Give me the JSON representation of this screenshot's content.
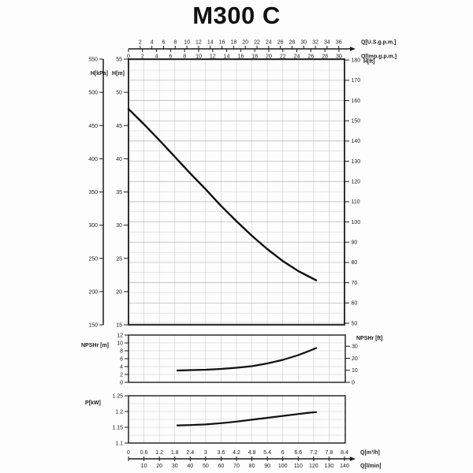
{
  "page": {
    "title": "M300 C"
  },
  "colors": {
    "bg": "#fdfdfd",
    "ink": "#1a1a1a",
    "grid_minor": "#cccccc",
    "grid_major": "#b2b2b2",
    "curve": "#0f0f0f"
  },
  "chart_data": [
    {
      "id": "main",
      "type": "line",
      "x_range_m3h": [
        0,
        8.4
      ],
      "y_range_m": [
        15,
        55
      ],
      "grid": {
        "vertical_step_m3h": 0.6,
        "horizontal_step_ft": 5
      },
      "axes": {
        "top_us": {
          "label": "Q[U.S.g.p.m.]",
          "m3h_per_unit": 0.22712,
          "ticks": [
            2,
            4,
            6,
            8,
            10,
            12,
            14,
            16,
            18,
            20,
            22,
            24,
            26,
            28,
            30,
            32,
            34,
            36
          ]
        },
        "top_imp": {
          "label": "Q[Imp.g.p.m.]",
          "m3h_per_unit": 0.27277,
          "ticks": [
            0,
            2,
            4,
            6,
            8,
            10,
            12,
            14,
            16,
            18,
            20,
            22,
            24,
            26,
            28,
            30
          ]
        },
        "left_kpa": {
          "label": "H[kPa]",
          "range": [
            150,
            550
          ],
          "ticks": [
            550,
            500,
            450,
            400,
            350,
            300,
            250,
            200,
            150
          ]
        },
        "left_m": {
          "label": "H[m]",
          "ticks": [
            55,
            50,
            45,
            40,
            35,
            30,
            25,
            20,
            15
          ]
        },
        "right_ft": {
          "label": "H[ft]",
          "m_per_unit": 0.3048,
          "ticks": [
            180,
            170,
            160,
            150,
            140,
            130,
            120,
            110,
            100,
            90,
            80,
            70,
            60,
            50
          ]
        },
        "bottom_m3h": {
          "label": "Q[m³/h]",
          "tick_labels": [
            "0",
            "0.6",
            "1.2",
            "1.8",
            "2.4",
            "3",
            "3.6",
            "4.2",
            "4.8",
            "5.4",
            "6",
            "6.6",
            "7.2",
            "7.8",
            "8.4"
          ]
        },
        "bottom_lmin": {
          "label": "Q[l/min]",
          "m3h_per_unit": 0.06,
          "ticks": [
            10,
            20,
            30,
            40,
            50,
            60,
            70,
            80,
            90,
            100,
            110,
            120,
            130,
            140
          ]
        }
      },
      "series": [
        {
          "name": "head-capacity-curve",
          "points": [
            [
              0,
              47.5
            ],
            [
              0.6,
              45.2
            ],
            [
              1.2,
              42.8
            ],
            [
              1.8,
              40.3
            ],
            [
              2.4,
              37.8
            ],
            [
              3,
              35.4
            ],
            [
              3.6,
              32.9
            ],
            [
              4.2,
              30.6
            ],
            [
              4.8,
              28.4
            ],
            [
              5.4,
              26.4
            ],
            [
              6,
              24.6
            ],
            [
              6.6,
              23.1
            ],
            [
              7,
              22.3
            ],
            [
              7.3,
              21.7
            ]
          ]
        }
      ]
    },
    {
      "id": "npsh",
      "type": "line",
      "x_range_m3h": [
        0,
        8.4
      ],
      "y_range_m": [
        0,
        12
      ],
      "grid": {
        "vertical_step_m3h": 0.6,
        "horizontal_step_m": 2
      },
      "axes": {
        "left_m": {
          "label": "NPSHr [m]",
          "ticks": [
            12,
            10,
            8,
            6,
            4,
            2,
            0
          ]
        },
        "right_ft": {
          "label": "NPSHr [ft]",
          "m_per_unit": 0.3048,
          "ticks": [
            30,
            20,
            10,
            0
          ]
        }
      },
      "series": [
        {
          "name": "npsh-curve",
          "points": [
            [
              1.9,
              3
            ],
            [
              2.4,
              3.1
            ],
            [
              3,
              3.2
            ],
            [
              3.6,
              3.4
            ],
            [
              4.2,
              3.7
            ],
            [
              4.8,
              4.1
            ],
            [
              5.4,
              4.8
            ],
            [
              6,
              5.7
            ],
            [
              6.6,
              6.9
            ],
            [
              7,
              7.9
            ],
            [
              7.3,
              8.7
            ]
          ]
        }
      ]
    },
    {
      "id": "power",
      "type": "line",
      "x_range_m3h": [
        0,
        8.4
      ],
      "y_range_kw": [
        1.1,
        1.25
      ],
      "grid": {
        "vertical_step_m3h": 0.6,
        "horizontal_step_kw": 0.025
      },
      "axes": {
        "left_kw": {
          "label": "P[kW]",
          "tick_labels": [
            "1.25",
            "1.2",
            "1.15",
            "1.1"
          ]
        }
      },
      "series": [
        {
          "name": "power-curve",
          "points": [
            [
              1.9,
              1.156
            ],
            [
              2.4,
              1.157
            ],
            [
              3,
              1.159
            ],
            [
              3.6,
              1.163
            ],
            [
              4.2,
              1.168
            ],
            [
              4.8,
              1.174
            ],
            [
              5.4,
              1.18
            ],
            [
              6,
              1.186
            ],
            [
              6.6,
              1.192
            ],
            [
              7,
              1.196
            ],
            [
              7.3,
              1.198
            ]
          ]
        }
      ]
    }
  ]
}
